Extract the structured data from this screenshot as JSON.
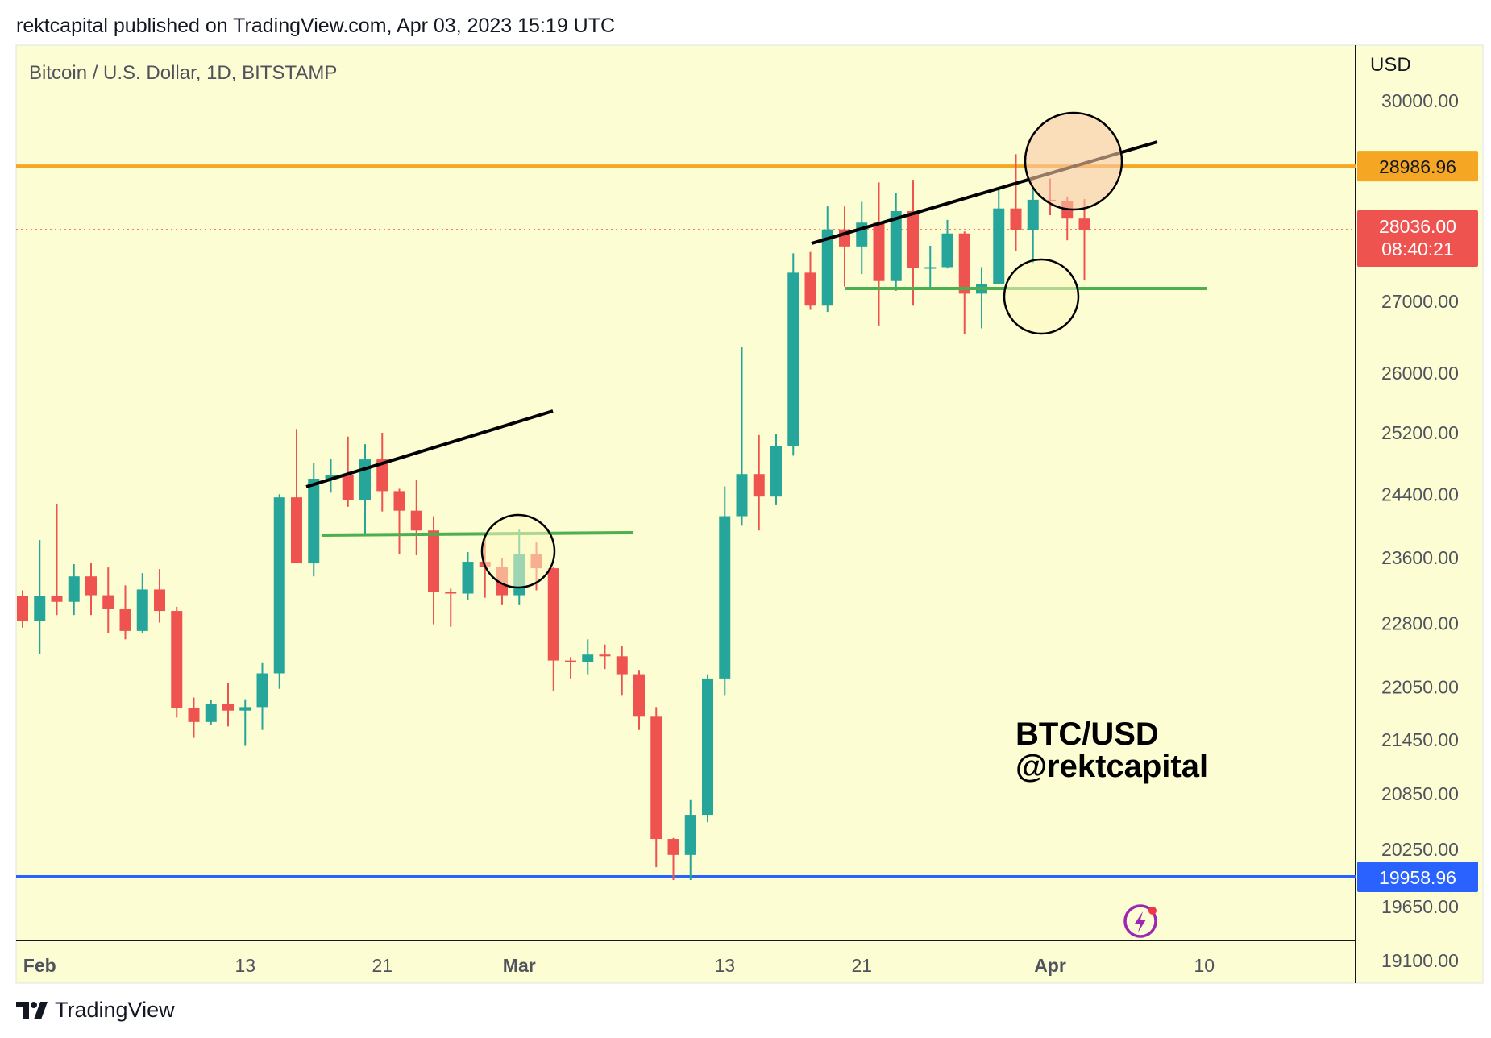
{
  "header": {
    "text": "rektcapital published on TradingView.com, Apr 03, 2023 15:19 UTC"
  },
  "footer": {
    "brand": "TradingView"
  },
  "colors": {
    "background": "#fdfdd3",
    "up": "#26a69a",
    "down": "#ef5350",
    "resistance": "#f5a623",
    "support": "#2962ff",
    "trendline": "#000000",
    "range_line": "#4caf50"
  },
  "chart_data": {
    "type": "candlestick",
    "title": "Bitcoin / U.S. Dollar, 1D, BITSTAMP",
    "y_axis_unit": "USD",
    "y_scale": "log",
    "y_ticks": [
      "30000.00",
      "27000.00",
      "26000.00",
      "25200.00",
      "24400.00",
      "23600.00",
      "22800.00",
      "22050.00",
      "21450.00",
      "20850.00",
      "20250.00",
      "19650.00",
      "19100.00"
    ],
    "x_ticks": [
      "Feb",
      "13",
      "21",
      "Mar",
      "13",
      "21",
      "Apr",
      "10"
    ],
    "price_labels": {
      "resistance": "28986.96",
      "last_price": "28036.00",
      "countdown": "08:40:21",
      "support": "19958.96"
    },
    "horizontal_levels": [
      {
        "name": "resistance",
        "price": 28986.96
      },
      {
        "name": "support",
        "price": 19958.96
      },
      {
        "name": "last_price",
        "price": 28036.0
      }
    ],
    "watermark": [
      "BTC/USD",
      "@rektcapital"
    ],
    "candles": [
      {
        "date": "2023-01-31",
        "o": 23130,
        "h": 23200,
        "l": 22750,
        "c": 22830
      },
      {
        "date": "2023-02-01",
        "o": 22830,
        "h": 23820,
        "l": 22440,
        "c": 23130
      },
      {
        "date": "2023-02-02",
        "o": 23130,
        "h": 24270,
        "l": 22900,
        "c": 23060
      },
      {
        "date": "2023-02-03",
        "o": 23060,
        "h": 23520,
        "l": 22900,
        "c": 23370
      },
      {
        "date": "2023-02-04",
        "o": 23370,
        "h": 23530,
        "l": 22900,
        "c": 23140
      },
      {
        "date": "2023-02-05",
        "o": 23140,
        "h": 23480,
        "l": 22690,
        "c": 22970
      },
      {
        "date": "2023-02-06",
        "o": 22970,
        "h": 23260,
        "l": 22610,
        "c": 22710
      },
      {
        "date": "2023-02-07",
        "o": 22710,
        "h": 23410,
        "l": 22690,
        "c": 23210
      },
      {
        "date": "2023-02-08",
        "o": 23210,
        "h": 23460,
        "l": 22810,
        "c": 22950
      },
      {
        "date": "2023-02-09",
        "o": 22950,
        "h": 23000,
        "l": 21700,
        "c": 21810
      },
      {
        "date": "2023-02-10",
        "o": 21810,
        "h": 21930,
        "l": 21470,
        "c": 21650
      },
      {
        "date": "2023-02-11",
        "o": 21650,
        "h": 21900,
        "l": 21620,
        "c": 21860
      },
      {
        "date": "2023-02-12",
        "o": 21860,
        "h": 22100,
        "l": 21600,
        "c": 21780
      },
      {
        "date": "2023-02-13",
        "o": 21780,
        "h": 21910,
        "l": 21380,
        "c": 21820
      },
      {
        "date": "2023-02-14",
        "o": 21820,
        "h": 22330,
        "l": 21560,
        "c": 22210
      },
      {
        "date": "2023-02-15",
        "o": 22210,
        "h": 24400,
        "l": 22030,
        "c": 24360
      },
      {
        "date": "2023-02-16",
        "o": 24360,
        "h": 25250,
        "l": 23600,
        "c": 23530
      },
      {
        "date": "2023-02-17",
        "o": 23530,
        "h": 24800,
        "l": 23370,
        "c": 24600
      },
      {
        "date": "2023-02-18",
        "o": 24600,
        "h": 24860,
        "l": 24420,
        "c": 24650
      },
      {
        "date": "2023-02-19",
        "o": 24650,
        "h": 25150,
        "l": 24240,
        "c": 24330
      },
      {
        "date": "2023-02-20",
        "o": 24330,
        "h": 25050,
        "l": 23890,
        "c": 24850
      },
      {
        "date": "2023-02-21",
        "o": 24850,
        "h": 25200,
        "l": 24180,
        "c": 24440
      },
      {
        "date": "2023-02-22",
        "o": 24440,
        "h": 24470,
        "l": 23640,
        "c": 24190
      },
      {
        "date": "2023-02-23",
        "o": 24190,
        "h": 24580,
        "l": 23630,
        "c": 23940
      },
      {
        "date": "2023-02-24",
        "o": 23940,
        "h": 24120,
        "l": 22790,
        "c": 23180
      },
      {
        "date": "2023-02-25",
        "o": 23180,
        "h": 23220,
        "l": 22760,
        "c": 23160
      },
      {
        "date": "2023-02-26",
        "o": 23160,
        "h": 23670,
        "l": 23080,
        "c": 23550
      },
      {
        "date": "2023-02-27",
        "o": 23550,
        "h": 23880,
        "l": 23110,
        "c": 23490
      },
      {
        "date": "2023-02-28",
        "o": 23490,
        "h": 23600,
        "l": 23020,
        "c": 23140
      },
      {
        "date": "2023-03-01",
        "o": 23140,
        "h": 23950,
        "l": 23020,
        "c": 23640
      },
      {
        "date": "2023-03-02",
        "o": 23640,
        "h": 23790,
        "l": 23200,
        "c": 23470
      },
      {
        "date": "2023-03-03",
        "o": 23470,
        "h": 23480,
        "l": 22000,
        "c": 22360
      },
      {
        "date": "2023-03-04",
        "o": 22360,
        "h": 22400,
        "l": 22150,
        "c": 22340
      },
      {
        "date": "2023-03-05",
        "o": 22340,
        "h": 22610,
        "l": 22200,
        "c": 22430
      },
      {
        "date": "2023-03-06",
        "o": 22430,
        "h": 22550,
        "l": 22260,
        "c": 22410
      },
      {
        "date": "2023-03-07",
        "o": 22410,
        "h": 22530,
        "l": 21950,
        "c": 22200
      },
      {
        "date": "2023-03-08",
        "o": 22200,
        "h": 22250,
        "l": 21560,
        "c": 21710
      },
      {
        "date": "2023-03-09",
        "o": 21710,
        "h": 21820,
        "l": 20060,
        "c": 20360
      },
      {
        "date": "2023-03-10",
        "o": 20360,
        "h": 20370,
        "l": 19570,
        "c": 20190
      },
      {
        "date": "2023-03-11",
        "o": 20190,
        "h": 20780,
        "l": 19900,
        "c": 20620
      },
      {
        "date": "2023-03-12",
        "o": 20620,
        "h": 22200,
        "l": 20540,
        "c": 22150
      },
      {
        "date": "2023-03-13",
        "o": 22150,
        "h": 24500,
        "l": 21950,
        "c": 24120
      },
      {
        "date": "2023-03-14",
        "o": 24120,
        "h": 26360,
        "l": 24000,
        "c": 24660
      },
      {
        "date": "2023-03-15",
        "o": 24660,
        "h": 25170,
        "l": 23940,
        "c": 24370
      },
      {
        "date": "2023-03-16",
        "o": 24370,
        "h": 25180,
        "l": 24260,
        "c": 25030
      },
      {
        "date": "2023-03-17",
        "o": 25030,
        "h": 27690,
        "l": 24900,
        "c": 27410
      },
      {
        "date": "2023-03-18",
        "o": 27410,
        "h": 27710,
        "l": 26880,
        "c": 26940
      },
      {
        "date": "2023-03-19",
        "o": 26940,
        "h": 28380,
        "l": 26850,
        "c": 28040
      },
      {
        "date": "2023-03-20",
        "o": 28040,
        "h": 28380,
        "l": 27210,
        "c": 27790
      },
      {
        "date": "2023-03-21",
        "o": 27790,
        "h": 28450,
        "l": 27390,
        "c": 28140
      },
      {
        "date": "2023-03-22",
        "o": 28140,
        "h": 28740,
        "l": 26660,
        "c": 27290
      },
      {
        "date": "2023-03-23",
        "o": 27290,
        "h": 28580,
        "l": 27150,
        "c": 28310
      },
      {
        "date": "2023-03-24",
        "o": 28310,
        "h": 28780,
        "l": 26940,
        "c": 27480
      },
      {
        "date": "2023-03-25",
        "o": 27480,
        "h": 27800,
        "l": 27170,
        "c": 27490
      },
      {
        "date": "2023-03-26",
        "o": 27490,
        "h": 28180,
        "l": 27470,
        "c": 27980
      },
      {
        "date": "2023-03-27",
        "o": 27980,
        "h": 28010,
        "l": 26540,
        "c": 27110
      },
      {
        "date": "2023-03-28",
        "o": 27110,
        "h": 27490,
        "l": 26620,
        "c": 27250
      },
      {
        "date": "2023-03-29",
        "o": 27250,
        "h": 28650,
        "l": 27240,
        "c": 28350
      },
      {
        "date": "2023-03-30",
        "o": 28350,
        "h": 29170,
        "l": 27720,
        "c": 28030
      },
      {
        "date": "2023-03-31",
        "o": 28030,
        "h": 28660,
        "l": 27550,
        "c": 28480
      },
      {
        "date": "2023-04-01",
        "o": 28480,
        "h": 28800,
        "l": 28250,
        "c": 28460
      },
      {
        "date": "2023-04-02",
        "o": 28460,
        "h": 28530,
        "l": 27880,
        "c": 28200
      },
      {
        "date": "2023-04-03",
        "o": 28200,
        "h": 28490,
        "l": 27300,
        "c": 28036
      }
    ]
  }
}
